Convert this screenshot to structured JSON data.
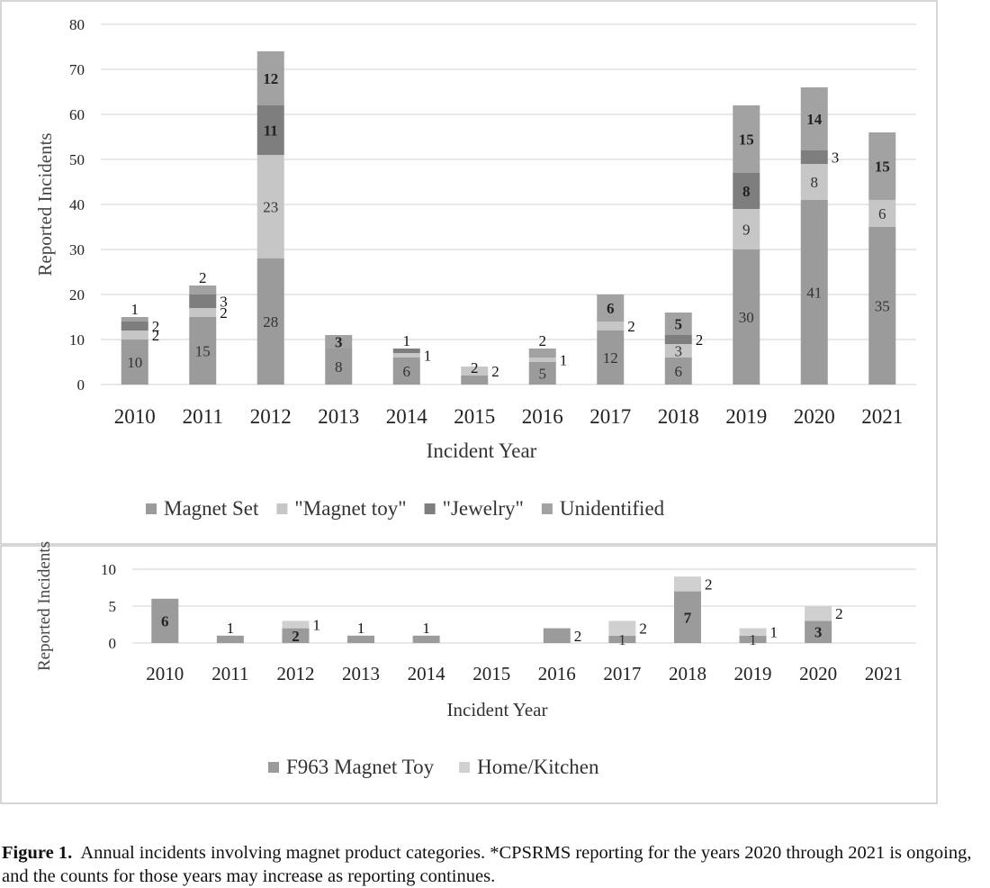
{
  "chart_data": [
    {
      "type": "bar",
      "stacked": true,
      "xlabel": "Incident  Year",
      "ylabel": "Reported Incidents",
      "ylim": [
        0,
        80
      ],
      "yticks": [
        0,
        10,
        20,
        30,
        40,
        50,
        60,
        70,
        80
      ],
      "grid": true,
      "legend": "bottom",
      "categories": [
        "2010",
        "2011",
        "2012",
        "2013",
        "2014",
        "2015",
        "2016",
        "2017",
        "2018",
        "2019",
        "2020",
        "2021"
      ],
      "series": [
        {
          "name": "Magnet Set",
          "color": "#9b9b9b",
          "values": [
            10,
            15,
            28,
            8,
            6,
            2,
            5,
            12,
            6,
            30,
            41,
            35
          ]
        },
        {
          "name": "\"Magnet toy\"",
          "color": "#c6c6c6",
          "values": [
            2,
            2,
            23,
            0,
            1,
            2,
            1,
            2,
            3,
            9,
            8,
            6
          ]
        },
        {
          "name": "\"Jewelry\"",
          "color": "#7e7e7e",
          "values": [
            2,
            3,
            11,
            0,
            1,
            0,
            0,
            0,
            2,
            8,
            3,
            0
          ]
        },
        {
          "name": "Unidentified",
          "color": "#a2a2a2",
          "values": [
            1,
            2,
            12,
            3,
            0,
            0,
            2,
            6,
            5,
            15,
            14,
            15
          ]
        }
      ],
      "labels": [
        [
          {
            "s": 0,
            "t": "10"
          },
          {
            "s": 1,
            "t": "2",
            "side": true
          },
          {
            "s": 2,
            "t": "2",
            "side": true
          },
          {
            "s": 3,
            "t": "1",
            "above": true
          }
        ],
        [
          {
            "s": 0,
            "t": "15"
          },
          {
            "s": 1,
            "t": "2",
            "side": true
          },
          {
            "s": 2,
            "t": "3",
            "side": true
          },
          {
            "s": 3,
            "t": "2",
            "above": true
          }
        ],
        [
          {
            "s": 0,
            "t": "28"
          },
          {
            "s": 1,
            "t": "23"
          },
          {
            "s": 2,
            "t": "11",
            "bold": true
          },
          {
            "s": 3,
            "t": "12",
            "bold": true
          }
        ],
        [
          {
            "s": 0,
            "t": "8"
          },
          {
            "s": 3,
            "t": "3",
            "bold": true
          }
        ],
        [
          {
            "s": 0,
            "t": "6"
          },
          {
            "s": 1,
            "t": "1",
            "side": true
          },
          {
            "s": 2,
            "t": "1",
            "above": true
          }
        ],
        [
          {
            "s": 0,
            "t": "2",
            "above": true
          },
          {
            "s": 1,
            "t": "2",
            "side": true
          }
        ],
        [
          {
            "s": 0,
            "t": "5"
          },
          {
            "s": 1,
            "t": "1",
            "side": true
          },
          {
            "s": 3,
            "t": "2",
            "above": true
          }
        ],
        [
          {
            "s": 0,
            "t": "12"
          },
          {
            "s": 1,
            "t": "2",
            "side": true
          },
          {
            "s": 3,
            "t": "6",
            "bold": true
          }
        ],
        [
          {
            "s": 0,
            "t": "6"
          },
          {
            "s": 1,
            "t": "3"
          },
          {
            "s": 2,
            "t": "2",
            "side": true
          },
          {
            "s": 3,
            "t": "5",
            "bold": true
          }
        ],
        [
          {
            "s": 0,
            "t": "30"
          },
          {
            "s": 1,
            "t": "9"
          },
          {
            "s": 2,
            "t": "8",
            "bold": true
          },
          {
            "s": 3,
            "t": "15",
            "bold": true
          }
        ],
        [
          {
            "s": 0,
            "t": "41"
          },
          {
            "s": 1,
            "t": "8"
          },
          {
            "s": 2,
            "t": "3",
            "side": true
          },
          {
            "s": 3,
            "t": "14",
            "bold": true
          }
        ],
        [
          {
            "s": 0,
            "t": "35"
          },
          {
            "s": 1,
            "t": "6"
          },
          {
            "s": 3,
            "t": "15",
            "bold": true
          }
        ]
      ]
    },
    {
      "type": "bar",
      "stacked": true,
      "xlabel": "Incident  Year",
      "ylabel": "Reported Incidents",
      "ylim": [
        0,
        10
      ],
      "yticks": [
        0,
        5,
        10
      ],
      "grid": true,
      "legend": "bottom",
      "categories": [
        "2010",
        "2011",
        "2012",
        "2013",
        "2014",
        "2015",
        "2016",
        "2017",
        "2018",
        "2019",
        "2020",
        "2021"
      ],
      "series": [
        {
          "name": "F963 Magnet Toy",
          "color": "#9b9b9b",
          "values": [
            6,
            1,
            2,
            1,
            1,
            0,
            2,
            1,
            7,
            1,
            3,
            0
          ]
        },
        {
          "name": "Home/Kitchen",
          "color": "#d0d0d0",
          "values": [
            0,
            0,
            1,
            0,
            0,
            0,
            0,
            2,
            2,
            1,
            2,
            0
          ]
        }
      ],
      "labels": [
        [
          {
            "s": 0,
            "t": "6",
            "bold": true
          }
        ],
        [
          {
            "s": 0,
            "t": "1",
            "above": true
          }
        ],
        [
          {
            "s": 0,
            "t": "2",
            "bold": true
          },
          {
            "s": 1,
            "t": "1",
            "side": true
          }
        ],
        [
          {
            "s": 0,
            "t": "1",
            "above": true
          }
        ],
        [
          {
            "s": 0,
            "t": "1",
            "above": true
          }
        ],
        [],
        [
          {
            "s": 0,
            "t": "2",
            "side": true
          }
        ],
        [
          {
            "s": 0,
            "t": "1"
          },
          {
            "s": 1,
            "t": "2",
            "side": true
          }
        ],
        [
          {
            "s": 0,
            "t": "7",
            "bold": true
          },
          {
            "s": 1,
            "t": "2",
            "side": true
          }
        ],
        [
          {
            "s": 0,
            "t": "1"
          },
          {
            "s": 1,
            "t": "1",
            "side": true
          }
        ],
        [
          {
            "s": 0,
            "t": "3",
            "bold": true
          },
          {
            "s": 1,
            "t": "2",
            "side": true
          }
        ],
        []
      ]
    }
  ],
  "caption": {
    "label": "Figure 1.",
    "text": "Annual incidents involving magnet product categories. *CPSRMS reporting for the years 2020 through 2021 is ongoing, and the counts for those years may increase as reporting continues."
  }
}
